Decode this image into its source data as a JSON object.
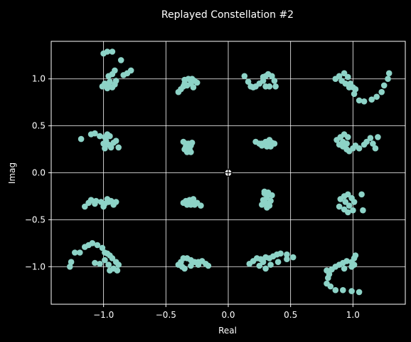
{
  "chart_data": {
    "type": "scatter",
    "title": "Replayed Constellation #2",
    "xlabel": "Real",
    "ylabel": "Imag",
    "xlim": [
      -1.42,
      1.42
    ],
    "ylim": [
      -1.4,
      1.4
    ],
    "xticks": [
      -1.0,
      -0.5,
      0.0,
      0.5,
      1.0
    ],
    "xtick_labels": [
      "−1.0",
      "−0.5",
      "0.0",
      "0.5",
      "1.0"
    ],
    "yticks": [
      -1.0,
      -0.5,
      0.0,
      0.5,
      1.0
    ],
    "ytick_labels": [
      "−1.0",
      "−0.5",
      "0.0",
      "0.5",
      "1.0"
    ],
    "grid": true,
    "colors": {
      "background": "#000000",
      "marker": "#8dd3c7",
      "grid": "#ffffff",
      "text": "#ffffff"
    },
    "series": [
      {
        "marker": "circle",
        "points": [
          [
            -1.0,
            1.27
          ],
          [
            -0.97,
            1.29
          ],
          [
            -0.93,
            1.29
          ],
          [
            -0.86,
            1.2
          ],
          [
            -0.81,
            1.06
          ],
          [
            -0.78,
            1.09
          ],
          [
            -0.84,
            1.04
          ],
          [
            -0.91,
            1.09
          ],
          [
            -0.96,
            1.03
          ],
          [
            -0.93,
            1.05
          ],
          [
            -1.01,
            0.92
          ],
          [
            -0.99,
            0.95
          ],
          [
            -0.97,
            0.9
          ],
          [
            -0.95,
            0.97
          ],
          [
            -0.93,
            0.91
          ],
          [
            -0.91,
            0.94
          ],
          [
            -0.9,
            0.98
          ],
          [
            -0.96,
            0.93
          ],
          [
            -0.4,
            0.86
          ],
          [
            -0.38,
            0.89
          ],
          [
            -0.36,
            0.92
          ],
          [
            -0.35,
            0.99
          ],
          [
            -0.32,
            1.0
          ],
          [
            -0.29,
            1.0
          ],
          [
            -0.27,
            0.98
          ],
          [
            -0.3,
            0.95
          ],
          [
            -0.33,
            0.93
          ],
          [
            -0.28,
            0.91
          ],
          [
            -0.25,
            0.96
          ],
          [
            -0.35,
            0.95
          ],
          [
            0.13,
            1.03
          ],
          [
            0.16,
            0.97
          ],
          [
            0.18,
            0.92
          ],
          [
            0.2,
            0.91
          ],
          [
            0.22,
            0.92
          ],
          [
            0.25,
            0.95
          ],
          [
            0.28,
            0.98
          ],
          [
            0.3,
            1.03
          ],
          [
            0.32,
            1.05
          ],
          [
            0.35,
            1.03
          ],
          [
            0.37,
            0.98
          ],
          [
            0.33,
            0.92
          ],
          [
            0.3,
            0.92
          ],
          [
            0.38,
            0.92
          ],
          [
            0.28,
            1.02
          ],
          [
            0.86,
            1.0
          ],
          [
            0.89,
            1.03
          ],
          [
            0.93,
            1.06
          ],
          [
            0.96,
            1.02
          ],
          [
            0.98,
            0.95
          ],
          [
            1.0,
            0.91
          ],
          [
            1.02,
            0.89
          ],
          [
            1.01,
            0.84
          ],
          [
            1.05,
            0.77
          ],
          [
            1.09,
            0.76
          ],
          [
            1.15,
            0.78
          ],
          [
            1.19,
            0.81
          ],
          [
            1.23,
            0.86
          ],
          [
            1.25,
            0.93
          ],
          [
            1.28,
            1.0
          ],
          [
            1.29,
            1.06
          ],
          [
            0.94,
            0.95
          ],
          [
            0.91,
            0.98
          ],
          [
            0.97,
            0.91
          ],
          [
            -1.18,
            0.36
          ],
          [
            -1.1,
            0.41
          ],
          [
            -1.07,
            0.42
          ],
          [
            -1.03,
            0.39
          ],
          [
            -0.99,
            0.38
          ],
          [
            -0.97,
            0.41
          ],
          [
            -0.95,
            0.39
          ],
          [
            -0.98,
            0.34
          ],
          [
            -0.96,
            0.3
          ],
          [
            -0.94,
            0.27
          ],
          [
            -0.99,
            0.26
          ],
          [
            -0.92,
            0.32
          ],
          [
            -0.9,
            0.34
          ],
          [
            -0.88,
            0.27
          ],
          [
            -1.0,
            0.31
          ],
          [
            -0.36,
            0.33
          ],
          [
            -0.34,
            0.31
          ],
          [
            -0.32,
            0.31
          ],
          [
            -0.3,
            0.29
          ],
          [
            -0.31,
            0.25
          ],
          [
            -0.35,
            0.25
          ],
          [
            -0.33,
            0.22
          ],
          [
            -0.29,
            0.32
          ],
          [
            -0.34,
            0.28
          ],
          [
            -0.3,
            0.22
          ],
          [
            0.22,
            0.33
          ],
          [
            0.25,
            0.31
          ],
          [
            0.27,
            0.31
          ],
          [
            0.3,
            0.33
          ],
          [
            0.32,
            0.33
          ],
          [
            0.35,
            0.32
          ],
          [
            0.37,
            0.31
          ],
          [
            0.34,
            0.28
          ],
          [
            0.31,
            0.28
          ],
          [
            0.27,
            0.29
          ],
          [
            0.33,
            0.35
          ],
          [
            0.87,
            0.35
          ],
          [
            0.9,
            0.38
          ],
          [
            0.93,
            0.41
          ],
          [
            0.96,
            0.38
          ],
          [
            0.92,
            0.33
          ],
          [
            0.89,
            0.3
          ],
          [
            0.92,
            0.28
          ],
          [
            0.95,
            0.25
          ],
          [
            0.97,
            0.23
          ],
          [
            1.0,
            0.26
          ],
          [
            1.02,
            0.29
          ],
          [
            1.05,
            0.26
          ],
          [
            1.09,
            0.3
          ],
          [
            1.11,
            0.33
          ],
          [
            1.16,
            0.31
          ],
          [
            1.18,
            0.26
          ],
          [
            1.2,
            0.38
          ],
          [
            1.14,
            0.37
          ],
          [
            0.95,
            0.31
          ],
          [
            -1.15,
            -0.36
          ],
          [
            -1.12,
            -0.32
          ],
          [
            -1.1,
            -0.29
          ],
          [
            -1.06,
            -0.3
          ],
          [
            -1.02,
            -0.31
          ],
          [
            -0.99,
            -0.33
          ],
          [
            -0.96,
            -0.31
          ],
          [
            -0.94,
            -0.3
          ],
          [
            -0.92,
            -0.34
          ],
          [
            -0.9,
            -0.31
          ],
          [
            -0.97,
            -0.28
          ],
          [
            -1.0,
            -0.36
          ],
          [
            -1.07,
            -0.33
          ],
          [
            -0.36,
            -0.32
          ],
          [
            -0.34,
            -0.3
          ],
          [
            -0.31,
            -0.29
          ],
          [
            -0.29,
            -0.31
          ],
          [
            -0.27,
            -0.34
          ],
          [
            -0.25,
            -0.32
          ],
          [
            -0.22,
            -0.35
          ],
          [
            -0.3,
            -0.34
          ],
          [
            -0.33,
            -0.34
          ],
          [
            -0.28,
            -0.28
          ],
          [
            0.29,
            -0.2
          ],
          [
            0.32,
            -0.21
          ],
          [
            0.35,
            -0.24
          ],
          [
            0.31,
            -0.26
          ],
          [
            0.28,
            -0.29
          ],
          [
            0.3,
            -0.32
          ],
          [
            0.33,
            -0.35
          ],
          [
            0.27,
            -0.34
          ],
          [
            0.31,
            -0.37
          ],
          [
            0.34,
            -0.3
          ],
          [
            0.29,
            -0.22
          ],
          [
            0.9,
            -0.28
          ],
          [
            0.93,
            -0.25
          ],
          [
            0.96,
            -0.23
          ],
          [
            0.99,
            -0.27
          ],
          [
            1.01,
            -0.31
          ],
          [
            0.97,
            -0.35
          ],
          [
            0.93,
            -0.39
          ],
          [
            0.96,
            -0.42
          ],
          [
            1.0,
            -0.4
          ],
          [
            0.89,
            -0.36
          ],
          [
            1.07,
            -0.23
          ],
          [
            1.08,
            -0.4
          ],
          [
            0.94,
            -0.31
          ],
          [
            -1.27,
            -1.0
          ],
          [
            -1.26,
            -0.95
          ],
          [
            -1.23,
            -0.85
          ],
          [
            -1.19,
            -0.85
          ],
          [
            -1.15,
            -0.79
          ],
          [
            -1.12,
            -0.77
          ],
          [
            -1.09,
            -0.75
          ],
          [
            -1.05,
            -0.77
          ],
          [
            -1.01,
            -0.8
          ],
          [
            -0.99,
            -0.85
          ],
          [
            -0.97,
            -0.86
          ],
          [
            -0.95,
            -0.88
          ],
          [
            -0.93,
            -0.91
          ],
          [
            -0.9,
            -0.95
          ],
          [
            -0.88,
            -0.98
          ],
          [
            -0.92,
            -1.02
          ],
          [
            -0.95,
            -1.04
          ],
          [
            -1.03,
            -0.97
          ],
          [
            -1.07,
            -0.96
          ],
          [
            -0.99,
            -0.93
          ],
          [
            -0.89,
            -1.04
          ],
          [
            -0.96,
            -0.98
          ],
          [
            -0.4,
            -0.98
          ],
          [
            -0.38,
            -0.95
          ],
          [
            -0.36,
            -0.91
          ],
          [
            -0.33,
            -0.91
          ],
          [
            -0.3,
            -0.93
          ],
          [
            -0.27,
            -0.95
          ],
          [
            -0.24,
            -0.95
          ],
          [
            -0.21,
            -0.94
          ],
          [
            -0.18,
            -0.97
          ],
          [
            -0.16,
            -0.99
          ],
          [
            -0.24,
            -0.98
          ],
          [
            -0.3,
            -0.99
          ],
          [
            -0.35,
            -1.02
          ],
          [
            -0.37,
            -1.0
          ],
          [
            0.17,
            -0.97
          ],
          [
            0.2,
            -0.94
          ],
          [
            0.23,
            -0.91
          ],
          [
            0.26,
            -0.92
          ],
          [
            0.3,
            -0.9
          ],
          [
            0.33,
            -0.91
          ],
          [
            0.36,
            -0.89
          ],
          [
            0.39,
            -0.87
          ],
          [
            0.42,
            -0.86
          ],
          [
            0.47,
            -0.87
          ],
          [
            0.52,
            -0.9
          ],
          [
            0.47,
            -0.92
          ],
          [
            0.25,
            -0.99
          ],
          [
            0.3,
            -1.02
          ],
          [
            0.34,
            -0.98
          ],
          [
            0.4,
            -0.95
          ],
          [
            0.28,
            -0.95
          ],
          [
            0.79,
            -1.04
          ],
          [
            0.81,
            -1.08
          ],
          [
            0.83,
            -1.03
          ],
          [
            0.86,
            -1.0
          ],
          [
            0.89,
            -0.98
          ],
          [
            0.92,
            -0.96
          ],
          [
            0.95,
            -0.94
          ],
          [
            0.99,
            -0.95
          ],
          [
            1.01,
            -0.91
          ],
          [
            1.02,
            -0.88
          ],
          [
            0.99,
            -1.0
          ],
          [
            0.93,
            -1.02
          ],
          [
            0.8,
            -1.12
          ],
          [
            0.79,
            -1.18
          ],
          [
            0.82,
            -1.21
          ],
          [
            0.86,
            -1.25
          ],
          [
            0.92,
            -1.25
          ],
          [
            0.99,
            -1.26
          ],
          [
            1.05,
            -1.27
          ],
          [
            1.01,
            -0.98
          ]
        ]
      }
    ],
    "annotations": [
      {
        "type": "crosshair-marker",
        "x": 0.0,
        "y": 0.0
      }
    ]
  }
}
